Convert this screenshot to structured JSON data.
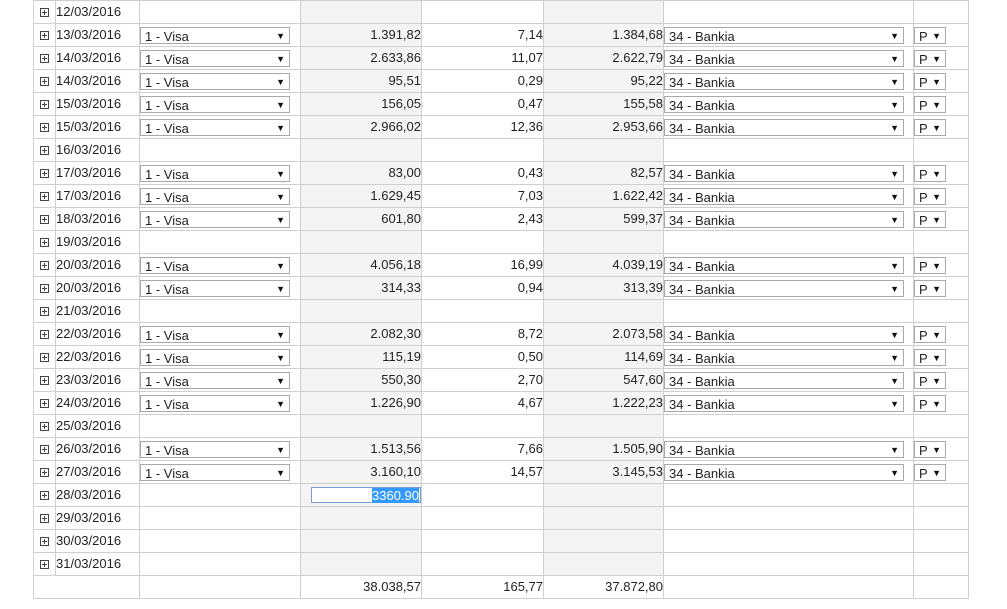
{
  "selects": {
    "card_arrow": "▼",
    "bank_arrow": "▼",
    "p_arrow": "▼"
  },
  "rows": [
    {
      "date": "12/03/2016",
      "card": "",
      "amount": "",
      "fee": "",
      "net": "",
      "bank": "",
      "p": ""
    },
    {
      "date": "13/03/2016",
      "card": "1 - Visa",
      "amount": "1.391,82",
      "fee": "7,14",
      "net": "1.384,68",
      "bank": "34 - Bankia",
      "p": "P"
    },
    {
      "date": "14/03/2016",
      "card": "1 - Visa",
      "amount": "2.633,86",
      "fee": "11,07",
      "net": "2.622,79",
      "bank": "34 - Bankia",
      "p": "P"
    },
    {
      "date": "14/03/2016",
      "card": "1 - Visa",
      "amount": "95,51",
      "fee": "0,29",
      "net": "95,22",
      "bank": "34 - Bankia",
      "p": "P"
    },
    {
      "date": "15/03/2016",
      "card": "1 - Visa",
      "amount": "156,05",
      "fee": "0,47",
      "net": "155,58",
      "bank": "34 - Bankia",
      "p": "P"
    },
    {
      "date": "15/03/2016",
      "card": "1 - Visa",
      "amount": "2.966,02",
      "fee": "12,36",
      "net": "2.953,66",
      "bank": "34 - Bankia",
      "p": "P"
    },
    {
      "date": "16/03/2016",
      "card": "",
      "amount": "",
      "fee": "",
      "net": "",
      "bank": "",
      "p": ""
    },
    {
      "date": "17/03/2016",
      "card": "1 - Visa",
      "amount": "83,00",
      "fee": "0,43",
      "net": "82,57",
      "bank": "34 - Bankia",
      "p": "P"
    },
    {
      "date": "17/03/2016",
      "card": "1 - Visa",
      "amount": "1.629,45",
      "fee": "7,03",
      "net": "1.622,42",
      "bank": "34 - Bankia",
      "p": "P"
    },
    {
      "date": "18/03/2016",
      "card": "1 - Visa",
      "amount": "601,80",
      "fee": "2,43",
      "net": "599,37",
      "bank": "34 - Bankia",
      "p": "P"
    },
    {
      "date": "19/03/2016",
      "card": "",
      "amount": "",
      "fee": "",
      "net": "",
      "bank": "",
      "p": ""
    },
    {
      "date": "20/03/2016",
      "card": "1 - Visa",
      "amount": "4.056,18",
      "fee": "16,99",
      "net": "4.039,19",
      "bank": "34 - Bankia",
      "p": "P"
    },
    {
      "date": "20/03/2016",
      "card": "1 - Visa",
      "amount": "314,33",
      "fee": "0,94",
      "net": "313,39",
      "bank": "34 - Bankia",
      "p": "P"
    },
    {
      "date": "21/03/2016",
      "card": "",
      "amount": "",
      "fee": "",
      "net": "",
      "bank": "",
      "p": ""
    },
    {
      "date": "22/03/2016",
      "card": "1 - Visa",
      "amount": "2.082,30",
      "fee": "8,72",
      "net": "2.073,58",
      "bank": "34 - Bankia",
      "p": "P"
    },
    {
      "date": "22/03/2016",
      "card": "1 - Visa",
      "amount": "115,19",
      "fee": "0,50",
      "net": "114,69",
      "bank": "34 - Bankia",
      "p": "P"
    },
    {
      "date": "23/03/2016",
      "card": "1 - Visa",
      "amount": "550,30",
      "fee": "2,70",
      "net": "547,60",
      "bank": "34 - Bankia",
      "p": "P"
    },
    {
      "date": "24/03/2016",
      "card": "1 - Visa",
      "amount": "1.226,90",
      "fee": "4,67",
      "net": "1.222,23",
      "bank": "34 - Bankia",
      "p": "P"
    },
    {
      "date": "25/03/2016",
      "card": "",
      "amount": "",
      "fee": "",
      "net": "",
      "bank": "",
      "p": ""
    },
    {
      "date": "26/03/2016",
      "card": "1 - Visa",
      "amount": "1.513,56",
      "fee": "7,66",
      "net": "1.505,90",
      "bank": "34 - Bankia",
      "p": "P"
    },
    {
      "date": "27/03/2016",
      "card": "1 - Visa",
      "amount": "3.160,10",
      "fee": "14,57",
      "net": "3.145,53",
      "bank": "34 - Bankia",
      "p": "P"
    },
    {
      "date": "28/03/2016",
      "card": "",
      "amount": "",
      "fee": "",
      "net": "",
      "bank": "",
      "p": "",
      "editing_amount": "3360.90"
    },
    {
      "date": "29/03/2016",
      "card": "",
      "amount": "",
      "fee": "",
      "net": "",
      "bank": "",
      "p": ""
    },
    {
      "date": "30/03/2016",
      "card": "",
      "amount": "",
      "fee": "",
      "net": "",
      "bank": "",
      "p": ""
    },
    {
      "date": "31/03/2016",
      "card": "",
      "amount": "",
      "fee": "",
      "net": "",
      "bank": "",
      "p": ""
    }
  ],
  "totals": {
    "amount": "38.038,57",
    "fee": "165,77",
    "net": "37.872,80"
  }
}
